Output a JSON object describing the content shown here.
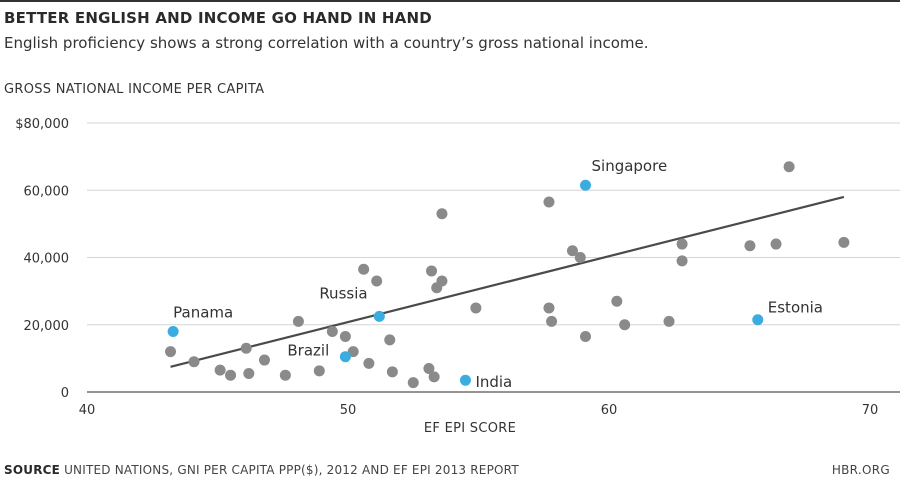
{
  "header": {
    "title": "BETTER ENGLISH AND INCOME GO HAND IN HAND",
    "subtitle": "English proficiency shows a strong correlation with a country’s gross national income."
  },
  "footer": {
    "source_label": "SOURCE",
    "source_text": "UNITED NATIONS, GNI PER CAPITA PPP($), 2012 AND EF EPI 2013 REPORT",
    "credit": "HBR.ORG"
  },
  "chart_data": {
    "type": "scatter",
    "title": "BETTER ENGLISH AND INCOME GO HAND IN HAND",
    "subtitle": "English proficiency shows a strong correlation with a country’s gross national income.",
    "xlabel": "EF EPI SCORE",
    "ylabel": "GROSS NATIONAL INCOME PER CAPITA",
    "xlim": [
      40,
      70
    ],
    "ylim": [
      0,
      80000
    ],
    "x_ticks": [
      "40",
      "50",
      "60",
      "70"
    ],
    "y_ticks": [
      "0",
      "20,000",
      "40,000",
      "60,000",
      "$80,000"
    ],
    "grid": "horizontal",
    "colors": {
      "point": "#8a8a8a",
      "highlight": "#3aace0",
      "trend": "#4a4a4a",
      "grid": "#d6d6d6"
    },
    "points": [
      {
        "x": 43.2,
        "y": 12000
      },
      {
        "x": 44.1,
        "y": 9000
      },
      {
        "x": 45.1,
        "y": 6500
      },
      {
        "x": 45.5,
        "y": 5000
      },
      {
        "x": 46.1,
        "y": 13000
      },
      {
        "x": 46.2,
        "y": 5500
      },
      {
        "x": 46.8,
        "y": 9500
      },
      {
        "x": 47.6,
        "y": 5000
      },
      {
        "x": 48.1,
        "y": 21000
      },
      {
        "x": 48.9,
        "y": 6300
      },
      {
        "x": 49.4,
        "y": 18000
      },
      {
        "x": 49.9,
        "y": 16500
      },
      {
        "x": 50.2,
        "y": 12000
      },
      {
        "x": 50.6,
        "y": 36500
      },
      {
        "x": 50.8,
        "y": 8500
      },
      {
        "x": 51.1,
        "y": 33000
      },
      {
        "x": 51.6,
        "y": 15500
      },
      {
        "x": 51.7,
        "y": 6000
      },
      {
        "x": 52.5,
        "y": 2800
      },
      {
        "x": 53.1,
        "y": 7000
      },
      {
        "x": 53.2,
        "y": 36000
      },
      {
        "x": 53.3,
        "y": 4500
      },
      {
        "x": 53.4,
        "y": 31000
      },
      {
        "x": 53.6,
        "y": 33000
      },
      {
        "x": 53.6,
        "y": 53000
      },
      {
        "x": 54.9,
        "y": 25000
      },
      {
        "x": 57.7,
        "y": 56500
      },
      {
        "x": 57.7,
        "y": 25000
      },
      {
        "x": 57.8,
        "y": 21000
      },
      {
        "x": 58.6,
        "y": 42000
      },
      {
        "x": 58.9,
        "y": 40000
      },
      {
        "x": 59.1,
        "y": 16500
      },
      {
        "x": 60.3,
        "y": 27000
      },
      {
        "x": 60.6,
        "y": 20000
      },
      {
        "x": 62.3,
        "y": 21000
      },
      {
        "x": 62.8,
        "y": 44000
      },
      {
        "x": 62.8,
        "y": 39000
      },
      {
        "x": 65.4,
        "y": 43500
      },
      {
        "x": 66.4,
        "y": 44000
      },
      {
        "x": 66.9,
        "y": 67000
      },
      {
        "x": 69.0,
        "y": 44500
      }
    ],
    "highlighted": [
      {
        "name": "Singapore",
        "x": 59.1,
        "y": 61500
      },
      {
        "name": "Panama",
        "x": 43.3,
        "y": 18000
      },
      {
        "name": "Russia",
        "x": 51.2,
        "y": 22500
      },
      {
        "name": "Brazil",
        "x": 49.9,
        "y": 10500
      },
      {
        "name": "India",
        "x": 54.5,
        "y": 3500
      },
      {
        "name": "Estonia",
        "x": 65.7,
        "y": 21500
      }
    ],
    "trendline": [
      {
        "x": 43.2,
        "y": 7500
      },
      {
        "x": 69.0,
        "y": 58000
      }
    ]
  }
}
